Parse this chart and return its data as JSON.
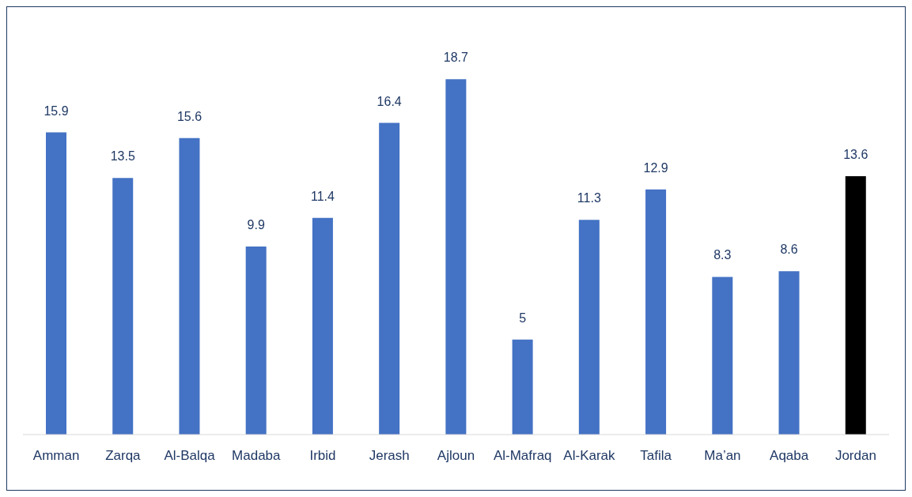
{
  "chart_data": {
    "type": "bar",
    "categories": [
      "Amman",
      "Zarqa",
      "Al-Balqa",
      "Madaba",
      "Irbid",
      "Jerash",
      "Ajloun",
      "Al-Mafraq",
      "Al-Karak",
      "Tafila",
      "Ma’an",
      "Aqaba",
      "Jordan"
    ],
    "values": [
      15.9,
      13.5,
      15.6,
      9.9,
      11.4,
      16.4,
      18.7,
      5,
      11.3,
      12.9,
      8.3,
      8.6,
      13.6
    ],
    "colors": [
      "#4472c4",
      "#4472c4",
      "#4472c4",
      "#4472c4",
      "#4472c4",
      "#4472c4",
      "#4472c4",
      "#4472c4",
      "#4472c4",
      "#4472c4",
      "#4472c4",
      "#4472c4",
      "#000000"
    ],
    "data_labels": true
  }
}
